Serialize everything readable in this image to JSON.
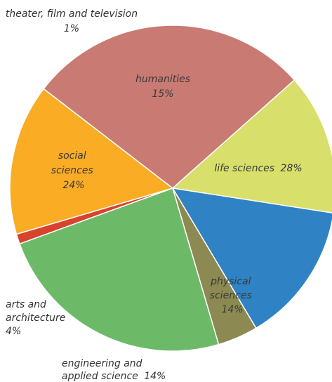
{
  "chart_data": {
    "type": "pie",
    "slices": [
      {
        "key": "theater",
        "label": "theater, film and television",
        "value": 1,
        "value_text": "1%",
        "color": "#d8432e"
      },
      {
        "key": "humanities",
        "label": "humanities",
        "value": 15,
        "value_text": "15%",
        "color": "#f9ac24"
      },
      {
        "key": "life",
        "label": "life sciences",
        "value": 28,
        "value_text": "28%",
        "color": "#c97a72"
      },
      {
        "key": "physical",
        "label": "physical sciences",
        "value": 14,
        "value_text": "14%",
        "color": "#d8df6a"
      },
      {
        "key": "engineering",
        "label": "engineering and applied science",
        "value": 14,
        "value_text": "14%",
        "color": "#2f82c3"
      },
      {
        "key": "arts",
        "label": "arts and architecture",
        "value": 4,
        "value_text": "4%",
        "color": "#8c8a52"
      },
      {
        "key": "social",
        "label": "social sciences",
        "value": 24,
        "value_text": "24%",
        "color": "#6cba68"
      }
    ],
    "legend": "none"
  }
}
